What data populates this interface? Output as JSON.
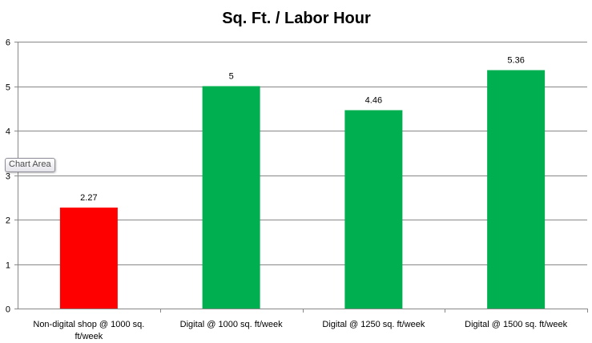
{
  "chart_data": {
    "type": "bar",
    "title": "Sq. Ft. / Labor Hour",
    "xlabel": "",
    "ylabel": "",
    "categories": [
      [
        "Non-digital shop @ 1000 sq.",
        "ft/week"
      ],
      [
        "Digital @ 1000 sq. ft/week"
      ],
      [
        "Digital @ 1250 sq. ft/week"
      ],
      [
        "Digital @ 1500 sq. ft/week"
      ]
    ],
    "values": [
      2.27,
      5,
      4.46,
      5.36
    ],
    "value_labels": [
      "2.27",
      "5",
      "4.46",
      "5.36"
    ],
    "bar_colors": [
      "#ff0000",
      "#00b050",
      "#00b050",
      "#00b050"
    ],
    "ylim": [
      0,
      6
    ],
    "yticks": [
      0,
      1,
      2,
      3,
      4,
      5,
      6
    ],
    "grid": true,
    "legend": "none"
  },
  "tooltip": {
    "label": "Chart Area"
  },
  "colors": {
    "gridline": "#888888",
    "axis": "#888888",
    "text": "#000000"
  }
}
